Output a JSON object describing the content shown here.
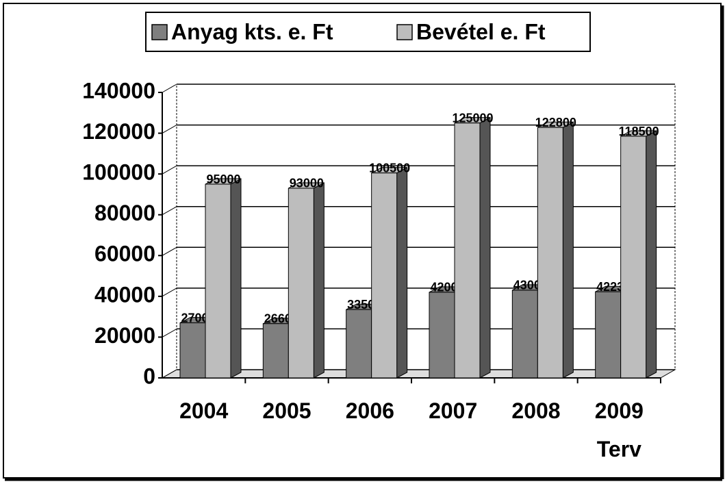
{
  "chart_data": {
    "type": "bar3d",
    "categories": [
      "2004",
      "2005",
      "2006",
      "2007",
      "2008",
      "2009\nTerv"
    ],
    "series": [
      {
        "name": "Anyag kts. e. Ft",
        "color": "#7f7f7f",
        "values": [
          27000,
          26600,
          33500,
          42000,
          43000,
          42230
        ]
      },
      {
        "name": "Bevétel e. Ft",
        "color": "#bdbdbd",
        "values": [
          95000,
          93000,
          100500,
          125000,
          122800,
          118500
        ]
      }
    ],
    "ylim": [
      0,
      140000
    ],
    "yticks": [
      0,
      20000,
      40000,
      60000,
      80000,
      100000,
      120000,
      140000
    ],
    "grid": true,
    "legend": "top"
  }
}
